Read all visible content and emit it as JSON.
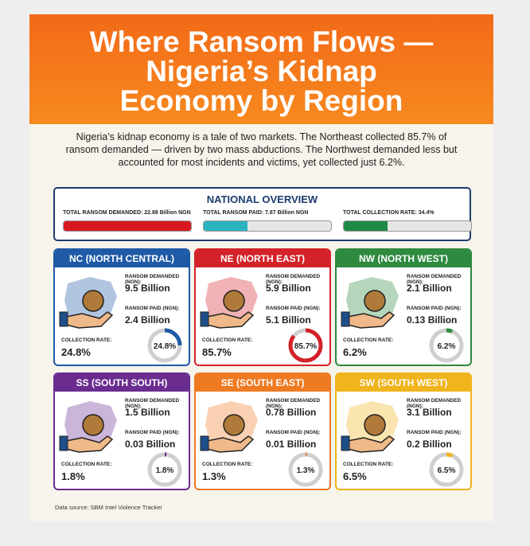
{
  "header": {
    "title": "Where Ransom Flows — Nigeria’s Kidnap Economy by Region",
    "intro": "Nigeria’s kidnap economy is a tale of two markets. The Northeast collected 85.7% of ransom demanded — driven by two mass abductions. The Northwest demanded less but accounted for most incidents and victims, yet collected just 6.2%."
  },
  "overview": {
    "title": "NATIONAL OVERVIEW",
    "items": [
      {
        "label": "TOTAL RANSOM DEMANDED: 22.88 Billion NGN",
        "value": 22.88,
        "color": "#d7191f"
      },
      {
        "label": "TOTAL RANSOM PAID: 7.87 Billion NGN",
        "value": 7.87,
        "color": "#2bb3c0"
      },
      {
        "label": "TOTAL COLLECTION RATE: 34.4%",
        "value": 34.4,
        "color": "#1f8a45"
      }
    ]
  },
  "regions": [
    {
      "name": "NC (NORTH CENTRAL)",
      "color": "#1f5aa6",
      "demanded_label": "RANSOM DEMANDED (NGN):",
      "demanded": "9.5 Billion",
      "paid_label": "RANSOM PAID (NGN):",
      "paid": "2.4 Billion",
      "rate_label": "COLLECTION RATE:",
      "rate": {
        "value": 24.8,
        "label": "24.8%"
      }
    },
    {
      "name": "NE (NORTH EAST)",
      "color": "#d3222a",
      "demanded_label": "RANSOM DEMANDED (NGN):",
      "demanded": "5.9 Billion",
      "paid_label": "RANSOM PAID (NGN):",
      "paid": "5.1 Billion",
      "rate_label": "COLLECTION RATE:",
      "rate": {
        "value": 85.7,
        "label": "85.7%"
      }
    },
    {
      "name": "NW (NORTH WEST)",
      "color": "#2e8a3f",
      "demanded_label": "RANSOM DEMANDED (NGN):",
      "demanded": "2.1 Billion",
      "paid_label": "RANSOM PAID (NGN):",
      "paid": "0.13 Billion",
      "rate_label": "COLLECTION RATE:",
      "rate": {
        "value": 6.2,
        "label": "6.2%"
      }
    },
    {
      "name": "SS (SOUTH SOUTH)",
      "color": "#6b2c8f",
      "demanded_label": "RANSOM DEMANDED (NGN):",
      "demanded": "1.5 Billion",
      "paid_label": "RANSOM PAID (NGN):",
      "paid": "0.03 Billion",
      "rate_label": "COLLECTION RATE:",
      "rate": {
        "value": 1.8,
        "label": "1.8%"
      }
    },
    {
      "name": "SE (SOUTH EAST)",
      "color": "#ee7a22",
      "demanded_label": "RANSOM DEMANDED (NGN):",
      "demanded": "0.78 Billion",
      "paid_label": "RANSOM PAID (NGN):",
      "paid": "0.01 Billion",
      "rate_label": "COLLECTION RATE:",
      "rate": {
        "value": 1.3,
        "label": "1.3%"
      }
    },
    {
      "name": "SW (SOUTH WEST)",
      "color": "#f0b41c",
      "demanded_label": "RANSOM DEMANDED (NGN):",
      "demanded": "3.1 Billion",
      "paid_label": "RANSOM PAID (NGN):",
      "paid": "0.2 Billion",
      "rate_label": "COLLECTION RATE:",
      "rate": {
        "value": 6.5,
        "label": "6.5%"
      }
    }
  ],
  "source": "Data source: SBM Intel Violence Tracker"
}
